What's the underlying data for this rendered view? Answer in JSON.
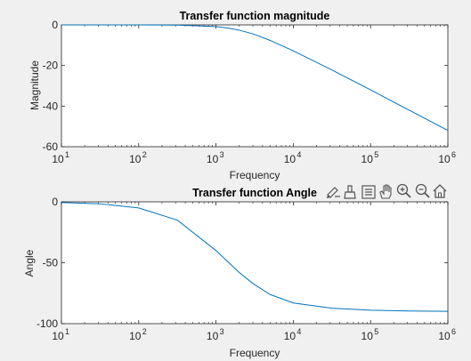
{
  "toolbar": {
    "icons": [
      "brush-icon",
      "data-cursor-icon",
      "legend-icon",
      "pan-hand-icon",
      "zoom-in-icon",
      "zoom-out-icon",
      "home-icon"
    ]
  },
  "colors": {
    "background": "#f0f0f0",
    "axes_bg": "#ffffff",
    "line": "#0072bd",
    "axis": "#262626"
  },
  "chart_data": [
    {
      "type": "line",
      "title": "Transfer function magnitude",
      "xlabel": "Frequency",
      "ylabel": "Magnitude",
      "xscale": "log",
      "xlim": [
        10,
        1000000
      ],
      "ylim": [
        -60,
        0
      ],
      "grid": false,
      "xticks": [
        10,
        100,
        1000,
        10000,
        100000,
        1000000
      ],
      "xtick_base": "10",
      "xtick_exponents": [
        "1",
        "2",
        "3",
        "4",
        "5",
        "6"
      ],
      "yticks": [
        0,
        -20,
        -40,
        -60
      ],
      "ytick_labels": [
        "0",
        "-20",
        "-40",
        "-60"
      ],
      "series": [
        {
          "x": [
            10,
            31.6,
            100,
            316,
            1000,
            1500,
            2000,
            3000,
            5000,
            10000,
            31600,
            100000,
            316000,
            1000000
          ],
          "y": [
            0,
            0,
            0,
            -0.1,
            -0.8,
            -1.7,
            -2.6,
            -4.4,
            -7.6,
            -12.8,
            -22.2,
            -32.0,
            -42.0,
            -52.0
          ]
        }
      ]
    },
    {
      "type": "line",
      "title": "Transfer function Angle",
      "xlabel": "Frequency",
      "ylabel": "Angle",
      "xscale": "log",
      "xlim": [
        10,
        1000000
      ],
      "ylim": [
        -100,
        0
      ],
      "grid": false,
      "xticks": [
        10,
        100,
        1000,
        10000,
        100000,
        1000000
      ],
      "xtick_base": "10",
      "xtick_exponents": [
        "1",
        "2",
        "3",
        "4",
        "5",
        "6"
      ],
      "yticks": [
        0,
        -50,
        -100
      ],
      "ytick_labels": [
        "0",
        "-50",
        "-100"
      ],
      "series": [
        {
          "x": [
            10,
            31.6,
            100,
            316,
            1000,
            2000,
            3000,
            5000,
            10000,
            31600,
            100000,
            316000,
            1000000
          ],
          "y": [
            -0.5,
            -1.6,
            -5.0,
            -15.0,
            -40.0,
            -58.0,
            -67.0,
            -76.0,
            -83.0,
            -87.3,
            -89.0,
            -89.6,
            -89.9
          ]
        }
      ]
    }
  ]
}
